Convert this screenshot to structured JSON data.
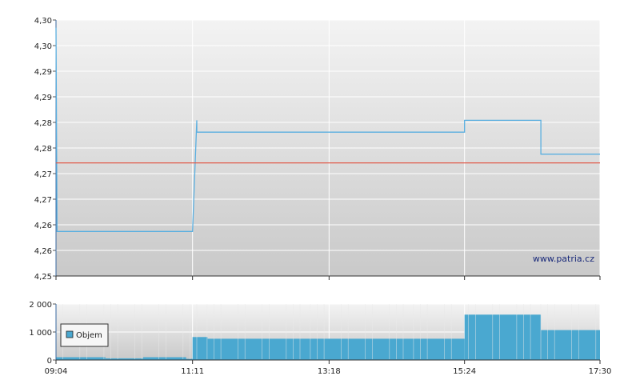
{
  "chart_data": [
    {
      "type": "line",
      "title": "",
      "xlabel": "",
      "ylabel": "",
      "x_ticks": [
        "09:04",
        "11:11",
        "13:18",
        "15:24",
        "17:30"
      ],
      "y_ticks": [
        "4,25",
        "4,26",
        "4,26",
        "4,27",
        "4,27",
        "4,28",
        "4,28",
        "4,29",
        "4,29",
        "4,30",
        "4,30"
      ],
      "ylim": [
        4.25,
        4.3
      ],
      "grid": true,
      "series": [
        {
          "kind": "price",
          "color": "#5aafe0",
          "x": [
            "09:04",
            "09:05",
            "11:11",
            "11:15",
            "11:15",
            "15:24",
            "15:24",
            "16:35",
            "16:35",
            "17:30"
          ],
          "y": [
            4.2985,
            4.2587,
            4.2587,
            4.2804,
            4.2781,
            4.2781,
            4.2804,
            4.2804,
            4.2738,
            4.2738
          ]
        },
        {
          "kind": "reference",
          "color": "#e05a4a",
          "x": [
            "09:04",
            "17:30"
          ],
          "y": [
            4.2721,
            4.2721
          ]
        }
      ],
      "annotation": "www.patria.cz"
    },
    {
      "type": "bar",
      "x_ticks": [
        "09:04",
        "11:11",
        "13:18",
        "15:24",
        "17:30"
      ],
      "y_ticks": [
        "0",
        "1 000",
        "2 000"
      ],
      "ylim": [
        0,
        2000
      ],
      "legend": {
        "label": "Objem",
        "position": "left"
      },
      "color": "#4aa8d0",
      "segments": [
        {
          "from": "09:04",
          "to": "09:50",
          "value": 100
        },
        {
          "from": "09:50",
          "to": "10:25",
          "value": 60
        },
        {
          "from": "10:25",
          "to": "11:05",
          "value": 100
        },
        {
          "from": "11:05",
          "to": "11:11",
          "value": 40
        },
        {
          "from": "11:11",
          "to": "11:25",
          "value": 820
        },
        {
          "from": "11:25",
          "to": "15:24",
          "value": 760
        },
        {
          "from": "15:24",
          "to": "16:35",
          "value": 1620
        },
        {
          "from": "16:35",
          "to": "17:30",
          "value": 1070
        }
      ]
    }
  ]
}
